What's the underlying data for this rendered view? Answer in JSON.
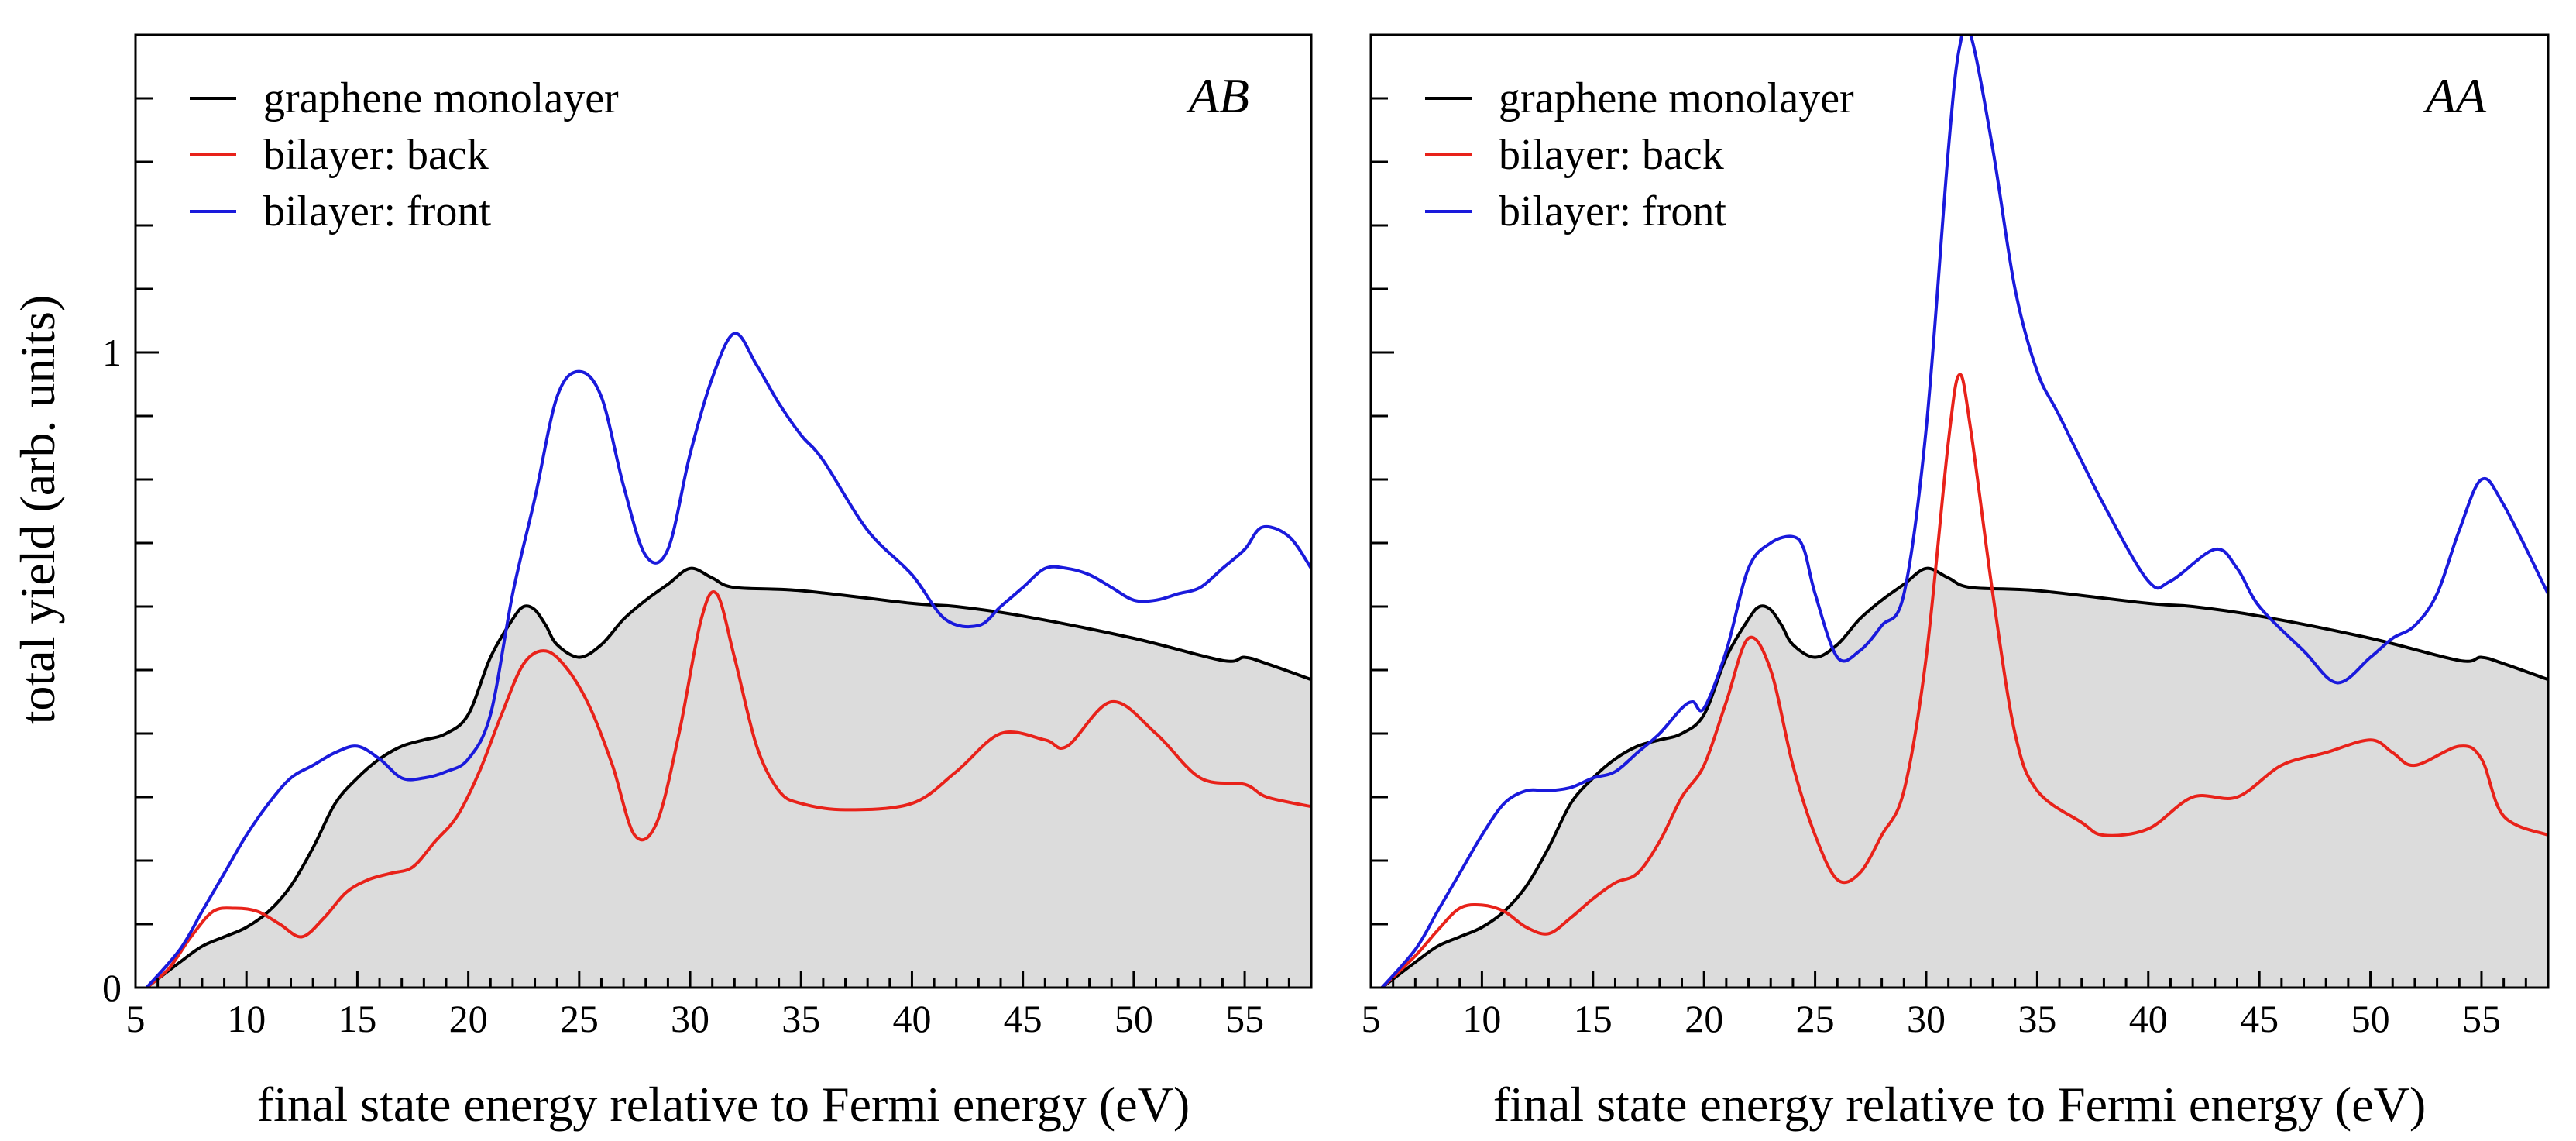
{
  "chart_data": [
    {
      "type": "line",
      "panel_label": "AB",
      "xlabel": "final state energy relative to Fermi energy (eV)",
      "ylabel": "total yield (arb. units)",
      "xlim": [
        5,
        58
      ],
      "ylim": [
        0,
        1.5
      ],
      "xticks": [
        5,
        10,
        15,
        20,
        25,
        30,
        35,
        40,
        45,
        50,
        55
      ],
      "yticks": [
        0,
        1
      ],
      "legend_position": "top-left",
      "series": [
        {
          "name": "graphene monolayer",
          "color": "#000000",
          "fill": "#dcdcdc",
          "x": [
            5.5,
            7,
            8,
            9,
            10,
            11,
            12,
            13,
            14,
            15,
            16,
            17,
            18,
            19,
            20,
            21,
            22,
            22.5,
            23,
            23.5,
            24,
            25,
            26,
            27,
            28,
            29,
            30,
            31,
            32,
            35,
            40,
            42,
            45,
            50,
            54,
            55,
            56,
            58
          ],
          "y": [
            0,
            0.04,
            0.065,
            0.08,
            0.095,
            0.12,
            0.16,
            0.22,
            0.29,
            0.33,
            0.36,
            0.38,
            0.39,
            0.4,
            0.43,
            0.52,
            0.58,
            0.6,
            0.595,
            0.57,
            0.54,
            0.52,
            0.54,
            0.58,
            0.61,
            0.635,
            0.66,
            0.645,
            0.63,
            0.625,
            0.605,
            0.6,
            0.585,
            0.55,
            0.515,
            0.52,
            0.51,
            0.485
          ]
        },
        {
          "name": "bilayer: back",
          "color": "#e8221a",
          "x": [
            5.5,
            6.5,
            7.5,
            8.5,
            9.5,
            10.5,
            11.5,
            12.5,
            13.5,
            14.5,
            15.5,
            16.5,
            17.5,
            18.5,
            19.5,
            20.5,
            21.5,
            22.5,
            23.5,
            24.5,
            25.5,
            26.5,
            27.5,
            28.5,
            29.5,
            30.5,
            31.2,
            32,
            33,
            34,
            35,
            37,
            40,
            42,
            44,
            46,
            47,
            49,
            51,
            53,
            55,
            56,
            58
          ],
          "y": [
            0,
            0.03,
            0.08,
            0.12,
            0.125,
            0.12,
            0.1,
            0.08,
            0.11,
            0.15,
            0.17,
            0.18,
            0.19,
            0.23,
            0.27,
            0.34,
            0.43,
            0.51,
            0.53,
            0.5,
            0.44,
            0.35,
            0.24,
            0.26,
            0.4,
            0.58,
            0.62,
            0.52,
            0.38,
            0.31,
            0.29,
            0.28,
            0.29,
            0.34,
            0.4,
            0.39,
            0.38,
            0.45,
            0.4,
            0.33,
            0.32,
            0.3,
            0.285
          ]
        },
        {
          "name": "bilayer: front",
          "color": "#1a1adc",
          "x": [
            5.5,
            7,
            8,
            9,
            10,
            11,
            12,
            13,
            14,
            15,
            16,
            17,
            18,
            19,
            20,
            21,
            22,
            23,
            24,
            25,
            26,
            27,
            28,
            29,
            30,
            31,
            32,
            33,
            34,
            35,
            36,
            38,
            40,
            41.5,
            43,
            44,
            45,
            46,
            47,
            48,
            49,
            50,
            51,
            52,
            53,
            54,
            55,
            55.8,
            57,
            58
          ],
          "y": [
            0,
            0.06,
            0.12,
            0.18,
            0.24,
            0.29,
            0.33,
            0.35,
            0.37,
            0.38,
            0.36,
            0.33,
            0.33,
            0.34,
            0.36,
            0.43,
            0.62,
            0.77,
            0.93,
            0.97,
            0.93,
            0.79,
            0.68,
            0.69,
            0.84,
            0.96,
            1.03,
            0.98,
            0.92,
            0.87,
            0.83,
            0.72,
            0.65,
            0.58,
            0.57,
            0.6,
            0.63,
            0.66,
            0.66,
            0.65,
            0.63,
            0.61,
            0.61,
            0.62,
            0.63,
            0.66,
            0.69,
            0.725,
            0.71,
            0.66
          ]
        }
      ]
    },
    {
      "type": "line",
      "panel_label": "AA",
      "xlabel": "final state energy relative to Fermi energy (eV)",
      "ylabel": "",
      "xlim": [
        5,
        58
      ],
      "ylim": [
        0,
        1.5
      ],
      "xticks": [
        5,
        10,
        15,
        20,
        25,
        30,
        35,
        40,
        45,
        50,
        55
      ],
      "yticks": [],
      "legend_position": "top-left",
      "series": [
        {
          "name": "graphene monolayer",
          "color": "#000000",
          "fill": "#dcdcdc",
          "x": [
            5.5,
            7,
            8,
            9,
            10,
            11,
            12,
            13,
            14,
            15,
            16,
            17,
            18,
            19,
            20,
            21,
            22,
            22.5,
            23,
            23.5,
            24,
            25,
            26,
            27,
            28,
            29,
            30,
            31,
            32,
            35,
            40,
            42,
            45,
            50,
            54,
            55,
            56,
            58
          ],
          "y": [
            0,
            0.04,
            0.065,
            0.08,
            0.095,
            0.12,
            0.16,
            0.22,
            0.29,
            0.33,
            0.36,
            0.38,
            0.39,
            0.4,
            0.43,
            0.52,
            0.58,
            0.6,
            0.595,
            0.57,
            0.54,
            0.52,
            0.54,
            0.58,
            0.61,
            0.635,
            0.66,
            0.645,
            0.63,
            0.625,
            0.605,
            0.6,
            0.585,
            0.55,
            0.515,
            0.52,
            0.51,
            0.485
          ]
        },
        {
          "name": "bilayer: back",
          "color": "#e8221a",
          "x": [
            5.5,
            7,
            8,
            9,
            10,
            11,
            12,
            13,
            14,
            15,
            16,
            17,
            18,
            19,
            20,
            21,
            22,
            23,
            24,
            25,
            26,
            27,
            28,
            29,
            30,
            31,
            31.5,
            32,
            33,
            34,
            35,
            37,
            38,
            40,
            42,
            44,
            46,
            48,
            50,
            51,
            52,
            54,
            55,
            56,
            58
          ],
          "y": [
            0,
            0.05,
            0.09,
            0.125,
            0.13,
            0.12,
            0.095,
            0.085,
            0.11,
            0.14,
            0.165,
            0.18,
            0.23,
            0.3,
            0.35,
            0.45,
            0.55,
            0.5,
            0.35,
            0.24,
            0.17,
            0.18,
            0.24,
            0.31,
            0.52,
            0.86,
            0.965,
            0.88,
            0.62,
            0.4,
            0.31,
            0.26,
            0.24,
            0.25,
            0.3,
            0.3,
            0.35,
            0.37,
            0.39,
            0.37,
            0.35,
            0.38,
            0.36,
            0.27,
            0.24
          ]
        },
        {
          "name": "bilayer: front",
          "color": "#1a1adc",
          "x": [
            5.5,
            7,
            8,
            9,
            10,
            11,
            12,
            13,
            14,
            15,
            16,
            17,
            18,
            19,
            19.5,
            20,
            21,
            22,
            23,
            24,
            24.5,
            25,
            26,
            27,
            28,
            29,
            30,
            31,
            31.5,
            32,
            33,
            34,
            35,
            36,
            38,
            40,
            41,
            43,
            44,
            45,
            47,
            48.5,
            50,
            51,
            52,
            53,
            54,
            55,
            56,
            58
          ],
          "y": [
            0,
            0.06,
            0.12,
            0.18,
            0.24,
            0.29,
            0.31,
            0.31,
            0.315,
            0.33,
            0.34,
            0.37,
            0.4,
            0.44,
            0.45,
            0.44,
            0.53,
            0.66,
            0.7,
            0.71,
            0.69,
            0.62,
            0.52,
            0.53,
            0.57,
            0.62,
            0.88,
            1.32,
            1.48,
            1.5,
            1.32,
            1.1,
            0.97,
            0.9,
            0.76,
            0.64,
            0.64,
            0.69,
            0.66,
            0.6,
            0.53,
            0.48,
            0.52,
            0.55,
            0.57,
            0.62,
            0.72,
            0.8,
            0.76,
            0.62
          ]
        }
      ]
    }
  ]
}
